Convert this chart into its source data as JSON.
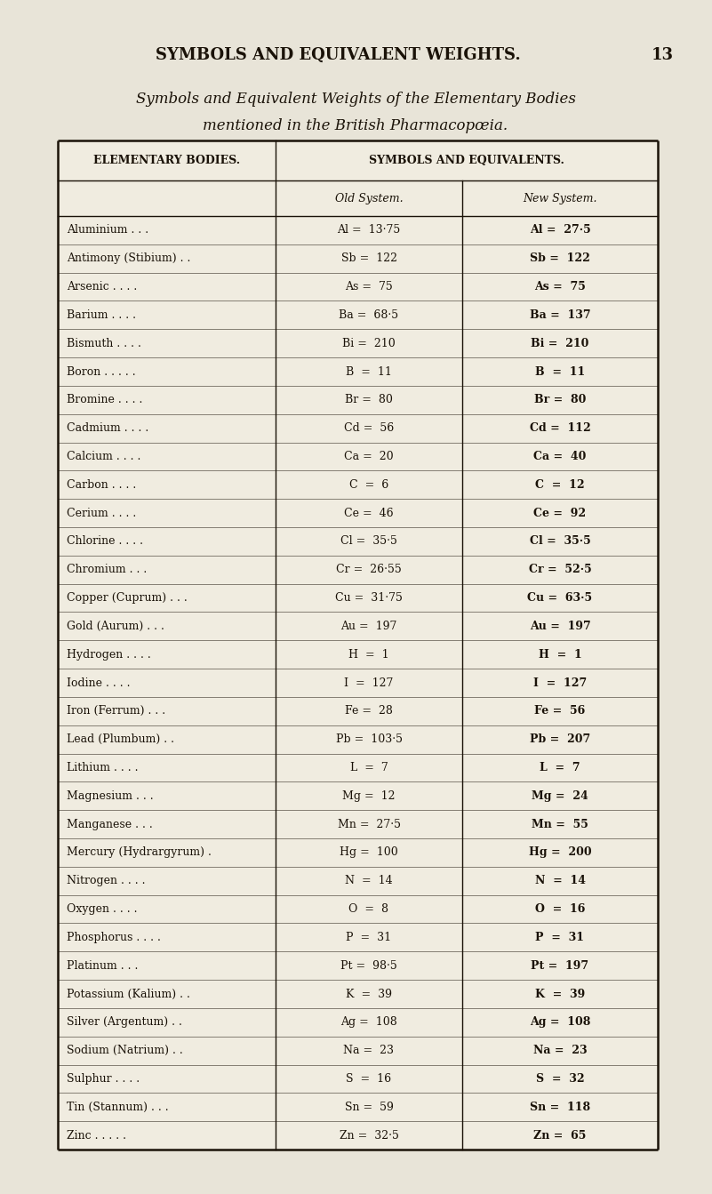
{
  "page_title": "SYMBOLS AND EQUIVALENT WEIGHTS.",
  "page_number": "13",
  "subtitle_line1": "Symbols and Equivalent Weights of the Elementary Bodies",
  "subtitle_line2": "mentioned in the British Pharmacopœia.",
  "col_header_left": "ELEMENTARY BODIES.",
  "col_header_mid": "SYMBOLS AND EQUIVALENTS.",
  "col_subheader_old": "Old System.",
  "col_subheader_new": "New System.",
  "background_color": "#e8e4d8",
  "table_bg": "#f0ece0",
  "text_color": "#1a1208",
  "rows": [
    [
      "Aluminium . . .",
      "Al =  13·75",
      "Al =  27·5"
    ],
    [
      "Antimony (Stibium) . .",
      "Sb =  122",
      "Sb =  122"
    ],
    [
      "Arsenic . . . .",
      "As =  75",
      "As =  75"
    ],
    [
      "Barium . . . .",
      "Ba =  68·5",
      "Ba =  137"
    ],
    [
      "Bismuth . . . .",
      "Bi =  210",
      "Bi =  210"
    ],
    [
      "Boron . . . . .",
      "B  =  11",
      "B  =  11"
    ],
    [
      "Bromine . . . .",
      "Br =  80",
      "Br =  80"
    ],
    [
      "Cadmium . . . .",
      "Cd =  56",
      "Cd =  112"
    ],
    [
      "Calcium . . . .",
      "Ca =  20",
      "Ca =  40"
    ],
    [
      "Carbon . . . .",
      "C  =  6",
      "C  =  12"
    ],
    [
      "Cerium . . . .",
      "Ce =  46",
      "Ce =  92"
    ],
    [
      "Chlorine . . . .",
      "Cl =  35·5",
      "Cl =  35·5"
    ],
    [
      "Chromium . . .",
      "Cr =  26·55",
      "Cr =  52·5"
    ],
    [
      "Copper (Cuprum) . . .",
      "Cu =  31·75",
      "Cu =  63·5"
    ],
    [
      "Gold (Aurum) . . .",
      "Au =  197",
      "Au =  197"
    ],
    [
      "Hydrogen . . . .",
      "H  =  1",
      "H  =  1"
    ],
    [
      "Iodine . . . .",
      "I  =  127",
      "I  =  127"
    ],
    [
      "Iron (Ferrum) . . .",
      "Fe =  28",
      "Fe =  56"
    ],
    [
      "Lead (Plumbum) . .",
      "Pb =  103·5",
      "Pb =  207"
    ],
    [
      "Lithium . . . .",
      "L  =  7",
      "L  =  7"
    ],
    [
      "Magnesium . . .",
      "Mg =  12",
      "Mg =  24"
    ],
    [
      "Manganese . . .",
      "Mn =  27·5",
      "Mn =  55"
    ],
    [
      "Mercury (Hydrargyrum) .",
      "Hg =  100",
      "Hg =  200"
    ],
    [
      "Nitrogen . . . .",
      "N  =  14",
      "N  =  14"
    ],
    [
      "Oxygen . . . .",
      "O  =  8",
      "O  =  16"
    ],
    [
      "Phosphorus . . . .",
      "P  =  31",
      "P  =  31"
    ],
    [
      "Platinum . . .",
      "Pt =  98·5",
      "Pt =  197"
    ],
    [
      "Potassium (Kalium) . .",
      "K  =  39",
      "K  =  39"
    ],
    [
      "Silver (Argentum) . .",
      "Ag =  108",
      "Ag =  108"
    ],
    [
      "Sodium (Natrium) . .",
      "Na =  23",
      "Na =  23"
    ],
    [
      "Sulphur . . . .",
      "S  =  16",
      "S  =  32"
    ],
    [
      "Tin (Stannum) . . .",
      "Sn =  59",
      "Sn =  118"
    ],
    [
      "Zinc . . . . .",
      "Zn =  32·5",
      "Zn =  65"
    ]
  ]
}
